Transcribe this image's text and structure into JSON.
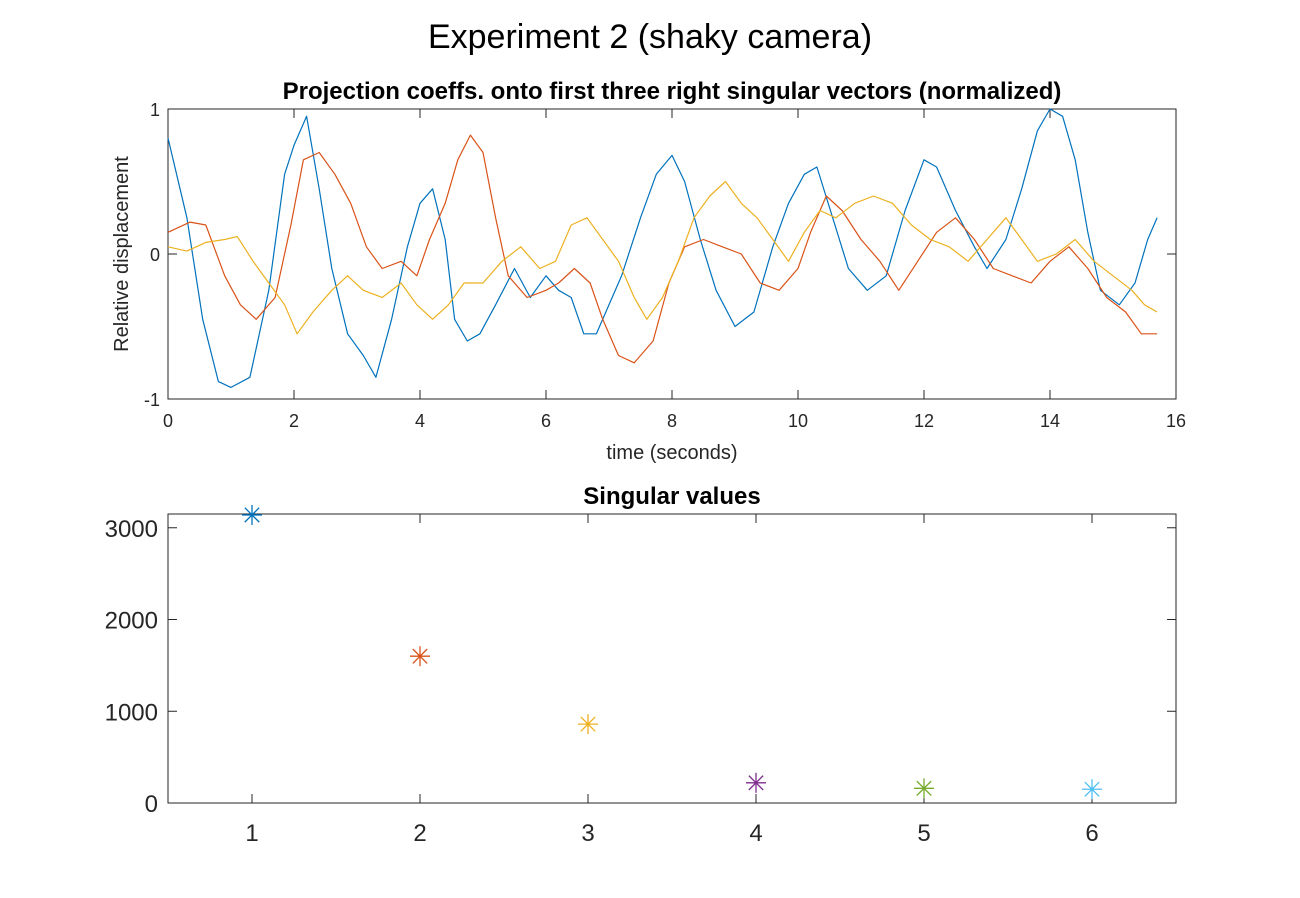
{
  "figure": {
    "suptitle": "Experiment 2 (shaky camera)"
  },
  "chart_data": [
    {
      "type": "line",
      "title": "Projection coeffs. onto first three right singular vectors (normalized)",
      "xlabel": "time (seconds)",
      "ylabel": "Relative displacement",
      "xlim": [
        0,
        16
      ],
      "ylim": [
        -1,
        1
      ],
      "xticks": [
        "0",
        "2",
        "4",
        "6",
        "8",
        "10",
        "12",
        "14",
        "16"
      ],
      "yticks": [
        "-1",
        "0",
        "1"
      ],
      "grid": false,
      "series": [
        {
          "color": "#0072BD",
          "x": [
            0,
            0.3,
            0.55,
            0.8,
            1.0,
            1.3,
            1.6,
            1.85,
            2.0,
            2.2,
            2.4,
            2.6,
            2.85,
            3.1,
            3.3,
            3.55,
            3.8,
            4.0,
            4.2,
            4.4,
            4.55,
            4.75,
            4.95,
            5.2,
            5.5,
            5.75,
            6.0,
            6.2,
            6.4,
            6.6,
            6.8,
            7.0,
            7.2,
            7.5,
            7.75,
            8.0,
            8.2,
            8.45,
            8.7,
            9.0,
            9.3,
            9.6,
            9.85,
            10.1,
            10.3,
            10.55,
            10.8,
            11.1,
            11.4,
            11.7,
            12.0,
            12.2,
            12.5,
            12.8,
            13.0,
            13.3,
            13.55,
            13.8,
            14.0,
            14.2,
            14.4,
            14.6,
            14.8,
            15.1,
            15.35,
            15.55,
            15.7
          ],
          "values": [
            0.8,
            0.25,
            -0.45,
            -0.88,
            -0.92,
            -0.85,
            -0.25,
            0.55,
            0.75,
            0.95,
            0.45,
            -0.1,
            -0.55,
            -0.7,
            -0.85,
            -0.45,
            0.05,
            0.35,
            0.45,
            0.1,
            -0.45,
            -0.6,
            -0.55,
            -0.35,
            -0.1,
            -0.3,
            -0.15,
            -0.25,
            -0.3,
            -0.55,
            -0.55,
            -0.35,
            -0.15,
            0.25,
            0.55,
            0.68,
            0.5,
            0.1,
            -0.25,
            -0.5,
            -0.4,
            0.05,
            0.35,
            0.55,
            0.6,
            0.25,
            -0.1,
            -0.25,
            -0.15,
            0.3,
            0.65,
            0.6,
            0.3,
            0.05,
            -0.1,
            0.1,
            0.45,
            0.85,
            1.0,
            0.95,
            0.65,
            0.15,
            -0.25,
            -0.35,
            -0.2,
            0.1,
            0.25
          ]
        },
        {
          "color": "#D95319",
          "x": [
            0,
            0.35,
            0.6,
            0.9,
            1.15,
            1.4,
            1.7,
            1.95,
            2.15,
            2.4,
            2.65,
            2.9,
            3.15,
            3.4,
            3.7,
            3.95,
            4.15,
            4.4,
            4.6,
            4.8,
            5.0,
            5.2,
            5.4,
            5.7,
            6.0,
            6.2,
            6.45,
            6.7,
            6.9,
            7.15,
            7.4,
            7.7,
            7.95,
            8.2,
            8.5,
            8.8,
            9.1,
            9.4,
            9.7,
            10.0,
            10.2,
            10.45,
            10.7,
            11.0,
            11.3,
            11.6,
            11.9,
            12.2,
            12.5,
            12.8,
            13.1,
            13.4,
            13.7,
            14.0,
            14.3,
            14.6,
            14.9,
            15.2,
            15.45,
            15.7
          ],
          "values": [
            0.15,
            0.22,
            0.2,
            -0.15,
            -0.35,
            -0.45,
            -0.3,
            0.2,
            0.65,
            0.7,
            0.55,
            0.35,
            0.05,
            -0.1,
            -0.05,
            -0.15,
            0.1,
            0.35,
            0.65,
            0.82,
            0.7,
            0.25,
            -0.15,
            -0.3,
            -0.25,
            -0.2,
            -0.1,
            -0.2,
            -0.45,
            -0.7,
            -0.75,
            -0.6,
            -0.2,
            0.05,
            0.1,
            0.05,
            0.0,
            -0.2,
            -0.25,
            -0.1,
            0.15,
            0.4,
            0.3,
            0.1,
            -0.05,
            -0.25,
            -0.05,
            0.15,
            0.25,
            0.1,
            -0.1,
            -0.15,
            -0.2,
            -0.05,
            0.05,
            -0.1,
            -0.3,
            -0.4,
            -0.55,
            -0.55
          ]
        },
        {
          "color": "#EDB120",
          "x": [
            0,
            0.3,
            0.6,
            0.9,
            1.1,
            1.35,
            1.6,
            1.85,
            2.05,
            2.3,
            2.6,
            2.85,
            3.1,
            3.4,
            3.7,
            3.95,
            4.2,
            4.45,
            4.7,
            5.0,
            5.3,
            5.6,
            5.9,
            6.15,
            6.4,
            6.65,
            6.9,
            7.15,
            7.4,
            7.6,
            7.85,
            8.1,
            8.35,
            8.6,
            8.85,
            9.1,
            9.35,
            9.6,
            9.85,
            10.1,
            10.35,
            10.6,
            10.9,
            11.2,
            11.5,
            11.8,
            12.1,
            12.4,
            12.7,
            13.0,
            13.3,
            13.55,
            13.8,
            14.1,
            14.4,
            14.7,
            15.0,
            15.3,
            15.5,
            15.7
          ],
          "values": [
            0.05,
            0.02,
            0.08,
            0.1,
            0.12,
            -0.05,
            -0.2,
            -0.35,
            -0.55,
            -0.4,
            -0.25,
            -0.15,
            -0.25,
            -0.3,
            -0.2,
            -0.35,
            -0.45,
            -0.35,
            -0.2,
            -0.2,
            -0.05,
            0.05,
            -0.1,
            -0.05,
            0.2,
            0.25,
            0.1,
            -0.05,
            -0.3,
            -0.45,
            -0.3,
            -0.05,
            0.25,
            0.4,
            0.5,
            0.35,
            0.25,
            0.1,
            -0.05,
            0.15,
            0.3,
            0.25,
            0.35,
            0.4,
            0.35,
            0.2,
            0.1,
            0.05,
            -0.05,
            0.1,
            0.25,
            0.1,
            -0.05,
            0.0,
            0.1,
            -0.05,
            -0.15,
            -0.25,
            -0.35,
            -0.4
          ]
        }
      ]
    },
    {
      "type": "scatter",
      "title": "Singular values",
      "xlabel": "",
      "ylabel": "",
      "xlim": [
        0.5,
        6.5
      ],
      "ylim": [
        0,
        3150
      ],
      "xticks": [
        "1",
        "2",
        "3",
        "4",
        "5",
        "6"
      ],
      "yticks": [
        "0",
        "1000",
        "2000",
        "3000"
      ],
      "grid": false,
      "marker": "asterisk",
      "x": [
        1,
        2,
        3,
        4,
        5,
        6
      ],
      "values": [
        3140,
        1600,
        860,
        220,
        160,
        150
      ],
      "colors": [
        "#0072BD",
        "#D95319",
        "#EDB120",
        "#7E2F8E",
        "#77AC30",
        "#4DBEEE"
      ]
    }
  ]
}
